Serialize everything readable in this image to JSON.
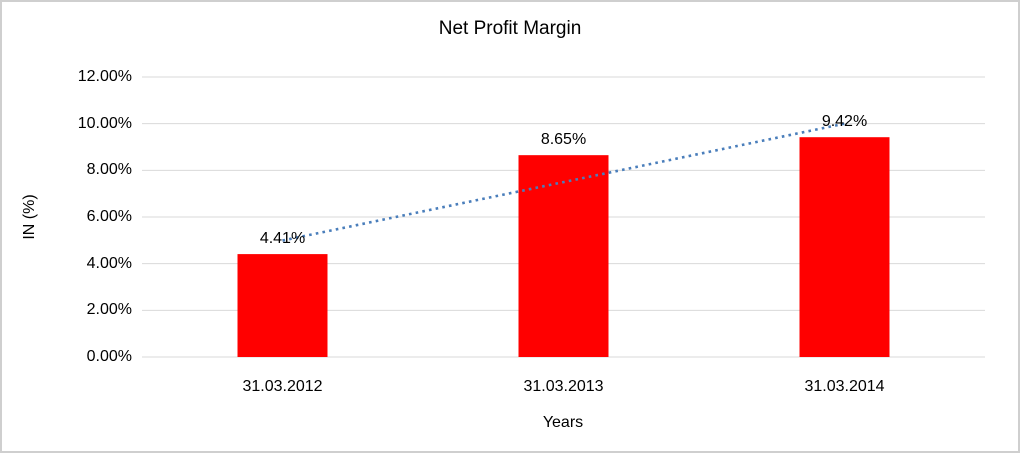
{
  "window": {
    "background_color": "#FFFFFF",
    "frame_border_color": "#CFCFCF"
  },
  "chart_data": {
    "type": "bar",
    "title": "Net Profit Margin",
    "xlabel": "Years",
    "ylabel": "IN (%)",
    "categories": [
      "31.03.2012",
      "31.03.2013",
      "31.03.2014"
    ],
    "values": [
      4.41,
      8.65,
      9.42
    ],
    "value_labels": [
      "4.41%",
      "8.65%",
      "9.42%"
    ],
    "y_ticks": [
      "0.00%",
      "2.00%",
      "4.00%",
      "6.00%",
      "8.00%",
      "10.00%",
      "12.00%"
    ],
    "ylim": [
      0,
      12
    ],
    "grid": true,
    "legend": false,
    "bar_color": "#FF0000",
    "grid_color": "#D9D9D9",
    "text_color": "#000000",
    "trendline": {
      "type": "linear",
      "style": "dotted",
      "color": "#4A7EBB",
      "start_value": 4.99,
      "end_value": 10.0
    }
  }
}
